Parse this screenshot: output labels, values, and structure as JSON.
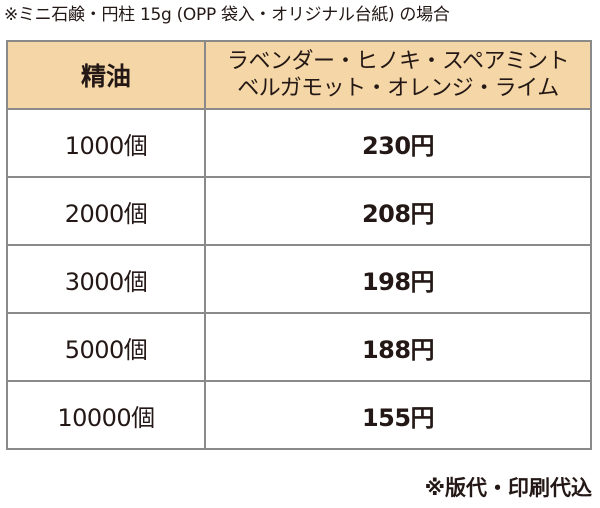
{
  "caption": "※ミニ石鹸・円柱 15g (OPP 袋入・オリジナル台紙) の場合",
  "table": {
    "header": {
      "col1": "精油",
      "col2_line1": "ラベンダー・ヒノキ・スペアミント",
      "col2_line2": "ベルガモット・オレンジ・ライム"
    },
    "rows": [
      {
        "qty": "1000個",
        "price": "230円"
      },
      {
        "qty": "2000個",
        "price": "208円"
      },
      {
        "qty": "3000個",
        "price": "198円"
      },
      {
        "qty": "5000個",
        "price": "188円"
      },
      {
        "qty": "10000個",
        "price": "155円"
      }
    ]
  },
  "footnote": "※版代・印刷代込",
  "colors": {
    "header_bg": "#f5d6a6",
    "border": "#8a8a8a",
    "text": "#231815"
  }
}
